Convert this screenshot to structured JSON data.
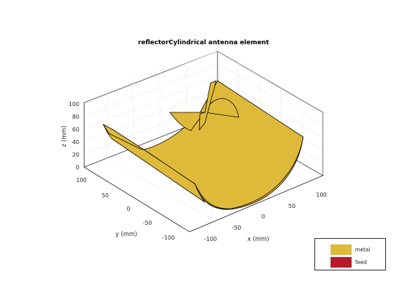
{
  "title": "reflectorCylindrical antenna element",
  "axes": {
    "z": {
      "label": "z (mm)",
      "ticks": [
        "0",
        "20",
        "40",
        "60",
        "80",
        "100"
      ]
    },
    "y": {
      "label": "y (mm)",
      "ticks": [
        "100",
        "50",
        "0",
        "-50",
        "-100"
      ]
    },
    "x": {
      "label": "x (mm)",
      "ticks": [
        "-100",
        "-50",
        "0",
        "50",
        "100"
      ]
    },
    "grid": true
  },
  "legend": {
    "placement": "bottom-right",
    "items": [
      {
        "label": "metal",
        "color": "#dfb93a"
      },
      {
        "label": "feed",
        "color": "#b91a2e"
      }
    ]
  },
  "colors": {
    "metal": "#dfb93a",
    "feed": "#b91a2e",
    "edge": "#000000",
    "grid": "#e6e6e6",
    "axis": "#262626"
  }
}
